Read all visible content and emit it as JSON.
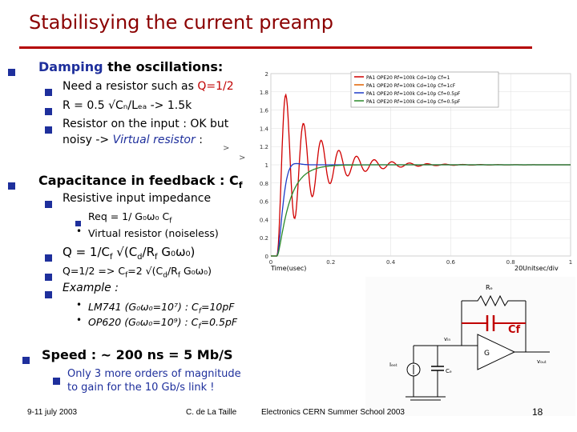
{
  "slide": {
    "title": "Stabilisying the current preamp",
    "page_number": "18",
    "footer_left": "9-11 july 2003",
    "footer_center": "C. de La Taille",
    "footer_right": "Electronics CERN Summer School 2003"
  },
  "bullets": {
    "damping_prefix": "Damping",
    "damping_rest": " the oscillations:",
    "resistor_q_text": "Need a resistor such as ",
    "resistor_q_value": "Q=1/2",
    "resistor_r": "R = 0.5 √Cₙ/Lₑₐ      -> 1.5k",
    "resistor_input_1": "Resistor on the input : OK but",
    "resistor_input_2a": "noisy -> ",
    "resistor_input_2b": "Virtual resistor",
    "resistor_input_2c": " :",
    "capacitance": "Capacitance in feedback : C",
    "capacitance_sub": "f",
    "resistive_input": "Resistive input impedance",
    "req": "Req = 1/ G₀ω₀ C",
    "req_sub": "f",
    "virtual_noiseless": "Virtual resistor (noiseless)",
    "q_formula": "Q = 1/C",
    "q_formula_rest": " √(C",
    "q_formula_rest2": "/R",
    "q_formula_rest3": " G₀ω₀)",
    "q_half": "Q=1/2 => C",
    "q_half_rest": "=2 √(C",
    "q_half_rest2": "/R",
    "q_half_rest3": " G₀ω₀)",
    "example": "Example :",
    "lm741": "LM741 (G₀ω₀=10⁷) :  C",
    "lm741_rest": "=10pF",
    "op620": "OP620 (G₀ω₀=10⁹) : C",
    "op620_rest": "=0.5pF",
    "speed": "Speed : ~ 200 ns  = 5 Mb/S",
    "orders_1": "Only 3 more orders of magnitude",
    "orders_2": "to gain for the 10 Gb/s link !"
  },
  "circuit": {
    "cf_label": "Cf",
    "rf_label": "Rₑ",
    "g_label": "G",
    "vin_label": "vᵢₙ",
    "vout_label": "vₒᵤₜ",
    "idet_label": "Iₑₑₜ",
    "cd_label": "Cₑ"
  },
  "colors": {
    "title": "#8b0000",
    "rule": "#b40000",
    "bullet": "#1e2f9c",
    "highlight_red": "#c00000",
    "trace_red": "#d00000",
    "trace_orange": "#e06000",
    "trace_green": "#2a8a2a",
    "trace_blue": "#1e3cc8",
    "trace_black": "#000000"
  },
  "chart_data": {
    "type": "line",
    "xlabel": "Time(usec)",
    "xlabel_right": "20Unitsec/div",
    "xlim": [
      0.0,
      1.0
    ],
    "ylim": [
      0.0,
      2.0
    ],
    "y_ticks": [
      "0",
      "0.2",
      "0.4",
      "0.6",
      "0.8",
      "1",
      "1.2",
      "1.4",
      "1.6",
      "1.8",
      "2"
    ],
    "x_ticks": [
      "0",
      "0.2",
      "0.4",
      "0.6",
      "0.8",
      "1"
    ],
    "series": [
      {
        "name": "PA1 OPE20 Rf=100k Cd=10p Cf=1",
        "color": "#d00000",
        "q": 6.0,
        "f0": 17.0
      },
      {
        "name": "PA1 OPE20 Rf=100k Cd=10p Cf=1cF",
        "color": "#e06000",
        "q": 0.5,
        "f0": 11.0
      },
      {
        "name": "PA1 OPE20 Rf=100k Cd=10p Cf=0.5pF",
        "color": "#1e3cc8",
        "q": 0.62,
        "f0": 13.0
      },
      {
        "name": "PA1 OPE20 Rf=100k Cd=10p Cf=0.5pF",
        "color": "#2a8a2a",
        "q": 0.35,
        "f0": 10.0
      }
    ]
  }
}
